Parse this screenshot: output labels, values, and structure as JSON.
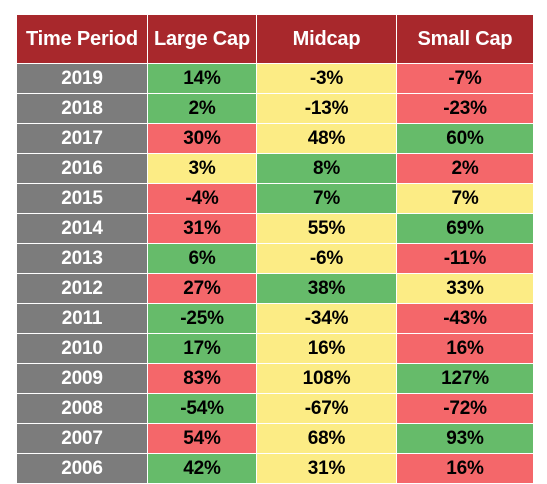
{
  "colors": {
    "header_bg": "#a8282c",
    "header_text": "#ffffff",
    "year_bg": "#7c7c7c",
    "year_text": "#ffffff",
    "green": "#66bb6a",
    "yellow": "#fcec85",
    "red": "#f4676a"
  },
  "chart_data": {
    "type": "table",
    "columns": [
      "Time Period",
      "Large Cap",
      "Midcap",
      "Small Cap"
    ],
    "rows": [
      {
        "period": "2019",
        "values": [
          "14%",
          "-3%",
          "-7%"
        ],
        "colors": [
          "green",
          "yellow",
          "red"
        ]
      },
      {
        "period": "2018",
        "values": [
          "2%",
          "-13%",
          "-23%"
        ],
        "colors": [
          "green",
          "yellow",
          "red"
        ]
      },
      {
        "period": "2017",
        "values": [
          "30%",
          "48%",
          "60%"
        ],
        "colors": [
          "red",
          "yellow",
          "green"
        ]
      },
      {
        "period": "2016",
        "values": [
          "3%",
          "8%",
          "2%"
        ],
        "colors": [
          "yellow",
          "green",
          "red"
        ]
      },
      {
        "period": "2015",
        "values": [
          "-4%",
          "7%",
          "7%"
        ],
        "colors": [
          "red",
          "green",
          "yellow"
        ]
      },
      {
        "period": "2014",
        "values": [
          "31%",
          "55%",
          "69%"
        ],
        "colors": [
          "red",
          "yellow",
          "green"
        ]
      },
      {
        "period": "2013",
        "values": [
          "6%",
          "-6%",
          "-11%"
        ],
        "colors": [
          "green",
          "yellow",
          "red"
        ]
      },
      {
        "period": "2012",
        "values": [
          "27%",
          "38%",
          "33%"
        ],
        "colors": [
          "red",
          "green",
          "yellow"
        ]
      },
      {
        "period": "2011",
        "values": [
          "-25%",
          "-34%",
          "-43%"
        ],
        "colors": [
          "green",
          "yellow",
          "red"
        ]
      },
      {
        "period": "2010",
        "values": [
          "17%",
          "16%",
          "16%"
        ],
        "colors": [
          "green",
          "yellow",
          "red"
        ]
      },
      {
        "period": "2009",
        "values": [
          "83%",
          "108%",
          "127%"
        ],
        "colors": [
          "red",
          "yellow",
          "green"
        ]
      },
      {
        "period": "2008",
        "values": [
          "-54%",
          "-67%",
          "-72%"
        ],
        "colors": [
          "green",
          "yellow",
          "red"
        ]
      },
      {
        "period": "2007",
        "values": [
          "54%",
          "68%",
          "93%"
        ],
        "colors": [
          "red",
          "yellow",
          "green"
        ]
      },
      {
        "period": "2006",
        "values": [
          "42%",
          "31%",
          "16%"
        ],
        "colors": [
          "green",
          "yellow",
          "red"
        ]
      }
    ]
  }
}
